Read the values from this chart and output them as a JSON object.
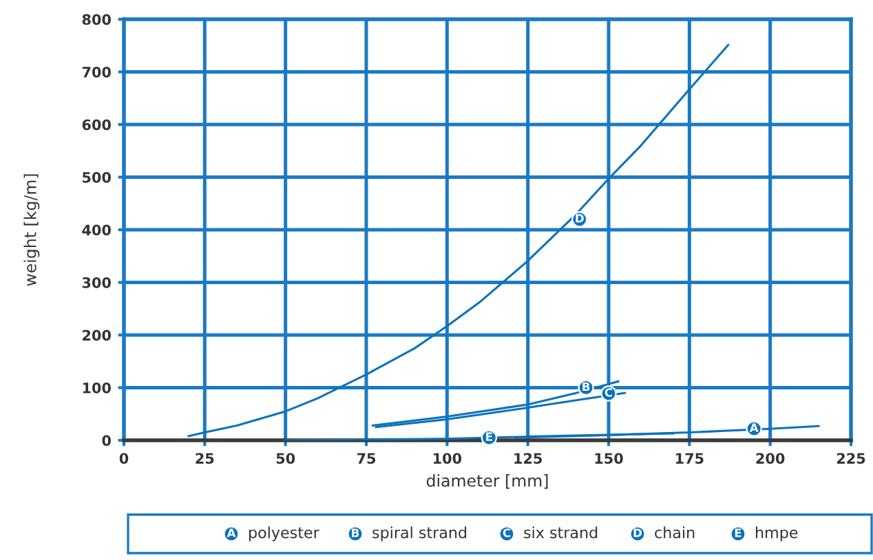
{
  "chart_data": {
    "type": "line",
    "xlabel": "diameter [mm]",
    "ylabel": "weight [kg/m]",
    "xlim": [
      0,
      225
    ],
    "xticks": [
      0,
      25,
      50,
      75,
      100,
      125,
      150,
      175,
      200,
      225
    ],
    "ylim": [
      0,
      800
    ],
    "yticks": [
      0,
      100,
      200,
      300,
      400,
      500,
      600,
      700,
      800
    ],
    "grid": true,
    "legend": "bottom",
    "marker": "none",
    "line_style": "solid",
    "series": [
      {
        "name": "polyester",
        "color": "#0a72bd",
        "x": [
          121,
          150,
          175,
          200,
          215
        ],
        "values": [
          5,
          10,
          15,
          22,
          27
        ]
      },
      {
        "name": "spiral strand",
        "color": "#0a72bd",
        "x": [
          77,
          100,
          125,
          140,
          153
        ],
        "values": [
          28,
          45,
          68,
          90,
          112
        ]
      },
      {
        "name": "six strand",
        "color": "#0a72bd",
        "x": [
          78,
          100,
          125,
          140,
          155
        ],
        "values": [
          25,
          40,
          62,
          76,
          90
        ]
      },
      {
        "name": "chain",
        "color": "#0a72bd",
        "x": [
          20,
          25,
          35,
          50,
          60,
          75,
          90,
          100,
          110,
          125,
          140,
          150,
          160,
          175,
          187
        ],
        "values": [
          8,
          15,
          28,
          55,
          80,
          125,
          175,
          217,
          262,
          341,
          430,
          497,
          560,
          667,
          751
        ]
      },
      {
        "name": "hmpe",
        "color": "#0a72bd",
        "x": [
          50,
          100,
          125,
          170
        ],
        "values": [
          0,
          3,
          7,
          13
        ]
      }
    ],
    "annotations": [
      {
        "text": "A",
        "x": 195,
        "y": 22
      },
      {
        "text": "B",
        "x": 143,
        "y": 100
      },
      {
        "text": "C",
        "x": 150,
        "y": 89
      },
      {
        "text": "D",
        "x": 141,
        "y": 420
      },
      {
        "text": "E",
        "x": 113,
        "y": 5
      }
    ]
  }
}
